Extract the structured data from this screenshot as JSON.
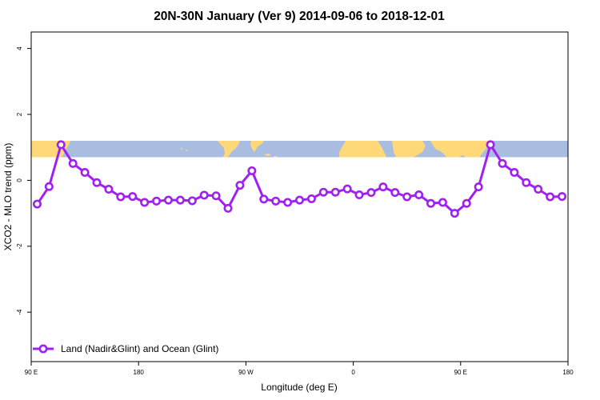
{
  "chart_data": {
    "type": "line",
    "title": "20N-30N January (Ver 9)   2014-09-06 to 2018-12-01",
    "xlabel": "Longitude (deg E)",
    "ylabel": "XCO2 - MLO trend (ppm)",
    "xlim": [
      90,
      540
    ],
    "ylim": [
      -5.5,
      4.5
    ],
    "x_ticks": [
      {
        "value": 90,
        "label": "90 E"
      },
      {
        "value": 180,
        "label": "180"
      },
      {
        "value": 270,
        "label": "90 W"
      },
      {
        "value": 360,
        "label": "0"
      },
      {
        "value": 450,
        "label": "90 E"
      },
      {
        "value": 540,
        "label": "180"
      }
    ],
    "y_ticks": [
      {
        "value": 4,
        "label": "4"
      },
      {
        "value": 2,
        "label": "2"
      },
      {
        "value": 0,
        "label": "0"
      },
      {
        "value": -2,
        "label": "-2"
      },
      {
        "value": -4,
        "label": "-4"
      }
    ],
    "map_band": {
      "y_range": [
        0.7,
        1.2
      ],
      "lat_range": "20N-30N",
      "land_color": "#ffd87a",
      "ocean_color": "#a8bde0"
    },
    "legend": {
      "position": "bottom-left",
      "label": "Land (Nadir&Glint) and Ocean (Glint)"
    },
    "series": [
      {
        "name": "Land (Nadir&Glint) and Ocean (Glint)",
        "color": "#a020f0",
        "x": [
          95,
          105,
          115,
          125,
          135,
          145,
          155,
          165,
          175,
          185,
          195,
          205,
          215,
          225,
          235,
          245,
          255,
          265,
          275,
          285,
          295,
          305,
          315,
          325,
          335,
          345,
          355,
          365,
          375,
          385,
          395,
          405,
          415,
          425,
          435,
          445,
          455,
          465,
          475,
          485,
          495,
          505,
          515,
          525,
          535
        ],
        "values": [
          -0.72,
          -0.19,
          1.08,
          0.51,
          0.24,
          -0.07,
          -0.27,
          -0.5,
          -0.49,
          -0.67,
          -0.63,
          -0.6,
          -0.6,
          -0.62,
          -0.45,
          -0.47,
          -0.85,
          -0.15,
          0.29,
          -0.57,
          -0.63,
          -0.67,
          -0.6,
          -0.56,
          -0.36,
          -0.36,
          -0.26,
          -0.44,
          -0.37,
          -0.2,
          -0.37,
          -0.5,
          -0.44,
          -0.7,
          -0.67,
          -1.0,
          -0.7,
          -0.2,
          1.08,
          0.51,
          0.24,
          -0.07,
          -0.27,
          -0.5,
          -0.49
        ]
      }
    ]
  }
}
